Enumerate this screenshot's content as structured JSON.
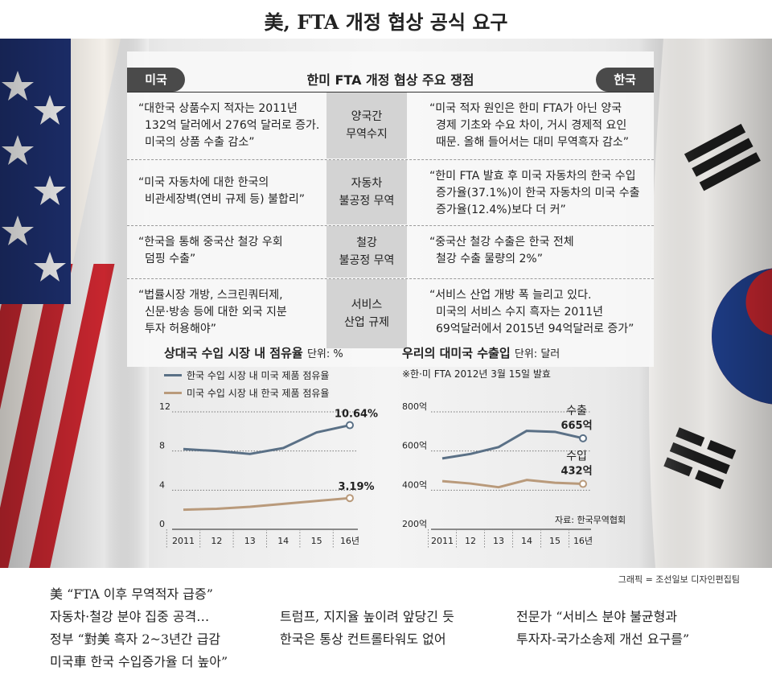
{
  "title": "美, FTA 개정 협상 공식 요구",
  "table": {
    "title": "한미 FTA 개정 협상 주요 쟁점",
    "left_label": "미국",
    "right_label": "한국",
    "rows": [
      {
        "topic": [
          "양국간",
          "무역수지"
        ],
        "us": [
          "“대한국 상품수지 적자는 2011년",
          "132억 달러에서 276억 달러로 증가.",
          "미국의 상품 수출 감소”"
        ],
        "kr": [
          "“미국 적자 원인은 한미 FTA가 아닌 양국",
          "경제 기초와 수요 차이, 거시 경제적 요인",
          "때문. 올해 들어서는 대미 무역흑자 감소”"
        ]
      },
      {
        "topic": [
          "자동차",
          "불공정 무역"
        ],
        "us": [
          "“미국 자동차에 대한 한국의",
          "비관세장벽(연비 규제 등) 불합리”"
        ],
        "kr": [
          "“한미 FTA 발효 후 미국 자동차의 한국 수입",
          "증가율(37.1%)이 한국 자동차의 미국 수출",
          "증가율(12.4%)보다 더 커”"
        ]
      },
      {
        "topic": [
          "철강",
          "불공정 무역"
        ],
        "us": [
          "“한국을 통해 중국산 철강 우회",
          "덤핑 수출”"
        ],
        "kr": [
          "“중국산 철강 수출은 한국 전체",
          "철강 수출 물량의 2%”"
        ]
      },
      {
        "topic": [
          "서비스",
          "산업 규제"
        ],
        "us": [
          "“법률시장 개방, 스크린쿼터제,",
          "신문·방송 등에 대한 외국 지분",
          "투자 허용해야”"
        ],
        "kr": [
          "“서비스 산업 개방 폭 늘리고 있다.",
          "미국의 서비스 수지 흑자는 2011년",
          "69억달러에서 2015년 94억달러로 증가”"
        ]
      }
    ]
  },
  "chart_data": [
    {
      "type": "line",
      "title": "상대국 수입 시장 내 점유율",
      "unit": "단위: %",
      "categories": [
        "2011",
        "12",
        "13",
        "14",
        "15",
        "16년"
      ],
      "ylim": [
        0,
        12
      ],
      "yticks": [
        "0",
        "4",
        "8",
        "12"
      ],
      "grid": true,
      "series": [
        {
          "name": "한국 수입 시장 내 미국 제품 점유율",
          "color": "#5a7086",
          "values": [
            8.2,
            8.0,
            7.7,
            8.3,
            9.9,
            10.64
          ],
          "end_label": "10.64%"
        },
        {
          "name": "미국 수입 시장 내 한국 제품 점유율",
          "color": "#b99a7b",
          "values": [
            2.0,
            2.1,
            2.3,
            2.6,
            2.9,
            3.19
          ],
          "end_label": "3.19%"
        }
      ]
    },
    {
      "type": "line",
      "title": "우리의 대미국 수출입",
      "unit": "단위: 달러",
      "note": "※한·미 FTA 2012년 3월 15일 발효",
      "source": "자료: 한국무역협회",
      "categories": [
        "2011",
        "12",
        "13",
        "14",
        "15",
        "16년"
      ],
      "ylim": [
        200,
        800
      ],
      "yticks": [
        "200억",
        "400억",
        "600억",
        "800억"
      ],
      "grid": true,
      "series": [
        {
          "name": "수출",
          "color": "#5a7086",
          "values": [
            562,
            585,
            620,
            703,
            698,
            665
          ],
          "end_label": "665억"
        },
        {
          "name": "수입",
          "color": "#b99a7b",
          "values": [
            446,
            434,
            415,
            452,
            438,
            432
          ],
          "end_label": "432억"
        }
      ]
    }
  ],
  "credit": "그래픽 = 조선일보 디자인편집팀",
  "captions": [
    [
      "美 “FTA 이후 무역적자 급증”",
      "자동차·철강 분야 집중 공격…",
      "정부 “對美 흑자 2~3년간 급감",
      "미국車 한국 수입증가율 더 높아”"
    ],
    [
      "트럼프, 지지율 높이려 앞당긴 듯",
      "한국은 통상 컨트롤타워도 없어"
    ],
    [
      "전문가 “서비스 분야 불균형과",
      "투자자-국가소송제 개선 요구를”"
    ]
  ]
}
